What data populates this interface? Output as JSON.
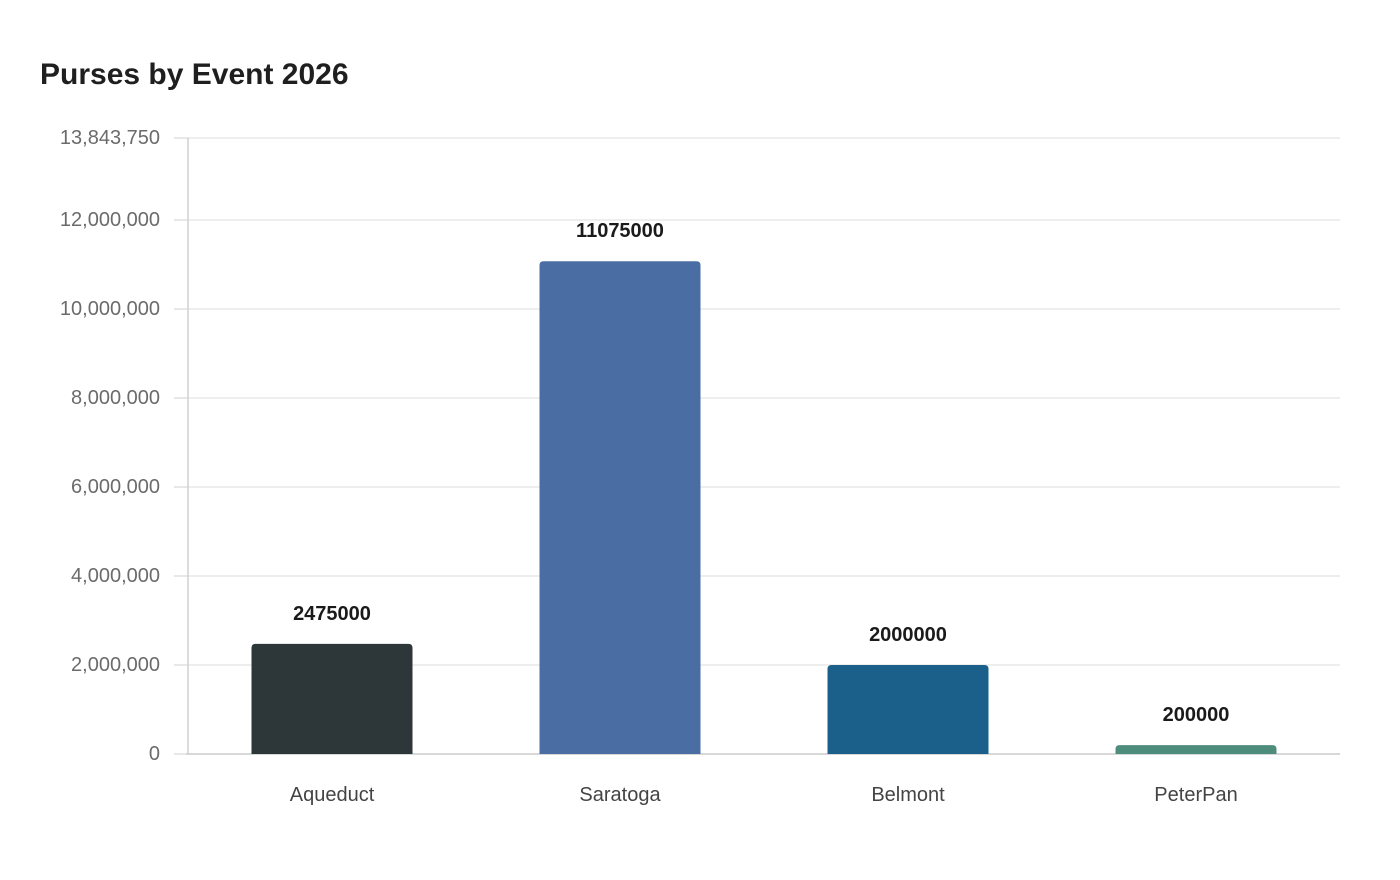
{
  "chart_data": {
    "type": "bar",
    "title": "Purses by Event 2026",
    "xlabel": "",
    "ylabel": "",
    "categories": [
      "Aqueduct",
      "Saratoga",
      "Belmont",
      "PeterPan"
    ],
    "values": [
      2475000,
      11075000,
      2000000,
      200000
    ],
    "value_labels": [
      "2475000",
      "11075000",
      "2000000",
      "200000"
    ],
    "colors": [
      "#2d3638",
      "#4a6da3",
      "#1a608a",
      "#4e8c7c"
    ],
    "ylim": [
      0,
      13843750
    ],
    "yticks": [
      0,
      2000000,
      4000000,
      6000000,
      8000000,
      10000000,
      12000000,
      13843750
    ],
    "ytick_labels": [
      "0",
      "2,000,000",
      "4,000,000",
      "6,000,000",
      "8,000,000",
      "10,000,000",
      "12,000,000",
      "13,843,750"
    ],
    "grid": true,
    "legend": "none"
  }
}
